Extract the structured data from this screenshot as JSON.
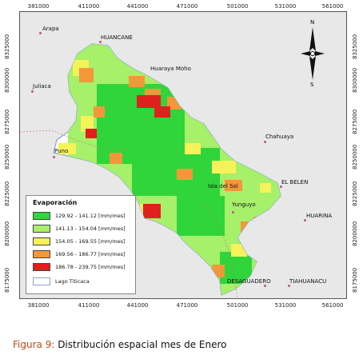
{
  "axes": {
    "x_ticks": [
      "381000",
      "411000",
      "441000",
      "471000",
      "501000",
      "531000",
      "561000"
    ],
    "y_ticks": [
      "8325000",
      "8300000",
      "8275000",
      "8250000",
      "8225000",
      "8200000",
      "8175000"
    ]
  },
  "places": [
    {
      "name": "Arapa"
    },
    {
      "name": "HUANCANE"
    },
    {
      "name": "Huaraya Moho"
    },
    {
      "name": "Juliaca"
    },
    {
      "name": "Chahuaya"
    },
    {
      "name": "Puno"
    },
    {
      "name": "EL BELEN"
    },
    {
      "name": "Isla del Sol"
    },
    {
      "name": "Yunguyo"
    },
    {
      "name": "HUARINA"
    },
    {
      "name": "DESAGUADERO"
    },
    {
      "name": "TIAHUANACU"
    }
  ],
  "north_arrow": {
    "n_label": "N",
    "s_label": "S"
  },
  "legend": {
    "title": "Evaporación",
    "items": [
      {
        "label": "129.92 - 141.12 [mm/mes]",
        "color": "#2fd53a"
      },
      {
        "label": "141.13 - 154.04 [mm/mes]",
        "color": "#a6f06a"
      },
      {
        "label": "154.05 - 169.55 [mm/mes]",
        "color": "#f6f25a"
      },
      {
        "label": "169.56 - 186.77 [mm/mes]",
        "color": "#f2983a"
      },
      {
        "label": "186.78 - 239.75 [mm/mes]",
        "color": "#e0201c"
      },
      {
        "label": "Lago Titicaca",
        "color": "#ffffff"
      }
    ]
  },
  "caption": {
    "prefix": "Figura 9:",
    "text": " Distribución espacial mes de Enero"
  }
}
